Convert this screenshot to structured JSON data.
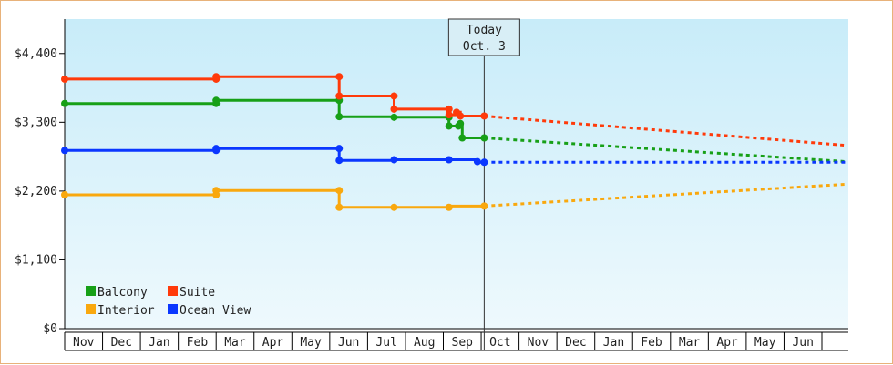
{
  "chart_data": {
    "type": "line",
    "title": "",
    "xlabel": "",
    "ylabel": "",
    "ylim": [
      0,
      4950
    ],
    "yticks": [
      0,
      1100,
      2200,
      3300,
      4400
    ],
    "ytick_labels": [
      "$0",
      "$1,100",
      "$2,200",
      "$3,300",
      "$4,400"
    ],
    "x_months": [
      "Nov",
      "Dec",
      "Jan",
      "Feb",
      "Mar",
      "Apr",
      "May",
      "Jun",
      "Jul",
      "Aug",
      "Sep",
      "Oct",
      "Nov",
      "Dec",
      "Jan",
      "Feb",
      "Mar",
      "Apr",
      "May",
      "Jun"
    ],
    "today_label": [
      "Today",
      "Oct. 3"
    ],
    "today_x": 11.08,
    "background": {
      "top": "#c8ecf9",
      "bottom": "#eef9fd"
    },
    "legend_placement": "bottom-left",
    "series": [
      {
        "name": "Balcony",
        "color": "#17a017",
        "points": [
          [
            0,
            3600
          ],
          [
            4,
            3600
          ],
          [
            4,
            3650
          ],
          [
            7.25,
            3650
          ],
          [
            7.25,
            3390
          ],
          [
            8.7,
            3390
          ],
          [
            8.7,
            3380
          ],
          [
            10.15,
            3380
          ],
          [
            10.15,
            3240
          ],
          [
            10.4,
            3240
          ],
          [
            10.4,
            3280
          ],
          [
            10.5,
            3280
          ],
          [
            10.5,
            3050
          ],
          [
            11.08,
            3050
          ]
        ],
        "markers": [
          [
            0,
            3600
          ],
          [
            4,
            3600
          ],
          [
            4,
            3650
          ],
          [
            7.25,
            3650
          ],
          [
            7.25,
            3390
          ],
          [
            8.7,
            3380
          ],
          [
            10.15,
            3380
          ],
          [
            10.15,
            3240
          ],
          [
            10.4,
            3240
          ],
          [
            10.45,
            3280
          ],
          [
            10.5,
            3050
          ],
          [
            11.08,
            3050
          ]
        ],
        "forecast": [
          [
            11.08,
            3050
          ],
          [
            20.65,
            2670
          ]
        ]
      },
      {
        "name": "Suite",
        "color": "#ff3a0a",
        "points": [
          [
            0,
            3990
          ],
          [
            4,
            3990
          ],
          [
            4,
            4030
          ],
          [
            7.25,
            4030
          ],
          [
            7.25,
            3720
          ],
          [
            8.7,
            3720
          ],
          [
            8.7,
            3510
          ],
          [
            10.15,
            3510
          ],
          [
            10.15,
            3420
          ],
          [
            10.35,
            3420
          ],
          [
            10.35,
            3460
          ],
          [
            10.45,
            3460
          ],
          [
            10.45,
            3400
          ],
          [
            11.08,
            3400
          ]
        ],
        "markers": [
          [
            0,
            3990
          ],
          [
            4,
            3990
          ],
          [
            4,
            4030
          ],
          [
            7.25,
            4030
          ],
          [
            7.25,
            3720
          ],
          [
            8.7,
            3720
          ],
          [
            8.7,
            3510
          ],
          [
            10.15,
            3510
          ],
          [
            10.15,
            3420
          ],
          [
            10.35,
            3460
          ],
          [
            10.45,
            3400
          ],
          [
            11.08,
            3400
          ]
        ],
        "forecast": [
          [
            11.08,
            3400
          ],
          [
            20.65,
            2930
          ]
        ]
      },
      {
        "name": "Interior",
        "color": "#f9a80e",
        "points": [
          [
            0,
            2140
          ],
          [
            4,
            2140
          ],
          [
            4,
            2210
          ],
          [
            7.25,
            2210
          ],
          [
            7.25,
            1940
          ],
          [
            8.7,
            1940
          ],
          [
            10.15,
            1940
          ],
          [
            10.15,
            1960
          ],
          [
            11.08,
            1960
          ]
        ],
        "markers": [
          [
            0,
            2140
          ],
          [
            4,
            2140
          ],
          [
            4,
            2210
          ],
          [
            7.25,
            2210
          ],
          [
            7.25,
            1940
          ],
          [
            8.7,
            1940
          ],
          [
            10.15,
            1940
          ],
          [
            11.08,
            1960
          ]
        ],
        "forecast": [
          [
            11.08,
            1960
          ],
          [
            20.65,
            2310
          ]
        ]
      },
      {
        "name": "Ocean View",
        "color": "#0a37ff",
        "points": [
          [
            0,
            2850
          ],
          [
            4,
            2850
          ],
          [
            4,
            2880
          ],
          [
            7.25,
            2880
          ],
          [
            7.25,
            2690
          ],
          [
            8.7,
            2690
          ],
          [
            8.7,
            2700
          ],
          [
            10.15,
            2700
          ],
          [
            10.9,
            2700
          ],
          [
            10.9,
            2660
          ],
          [
            11.08,
            2660
          ]
        ],
        "markers": [
          [
            0,
            2850
          ],
          [
            4,
            2850
          ],
          [
            4,
            2880
          ],
          [
            7.25,
            2880
          ],
          [
            7.25,
            2690
          ],
          [
            8.7,
            2700
          ],
          [
            10.15,
            2700
          ],
          [
            10.9,
            2670
          ],
          [
            11.08,
            2660
          ]
        ],
        "forecast": [
          [
            11.08,
            2660
          ],
          [
            20.65,
            2660
          ]
        ]
      }
    ]
  }
}
